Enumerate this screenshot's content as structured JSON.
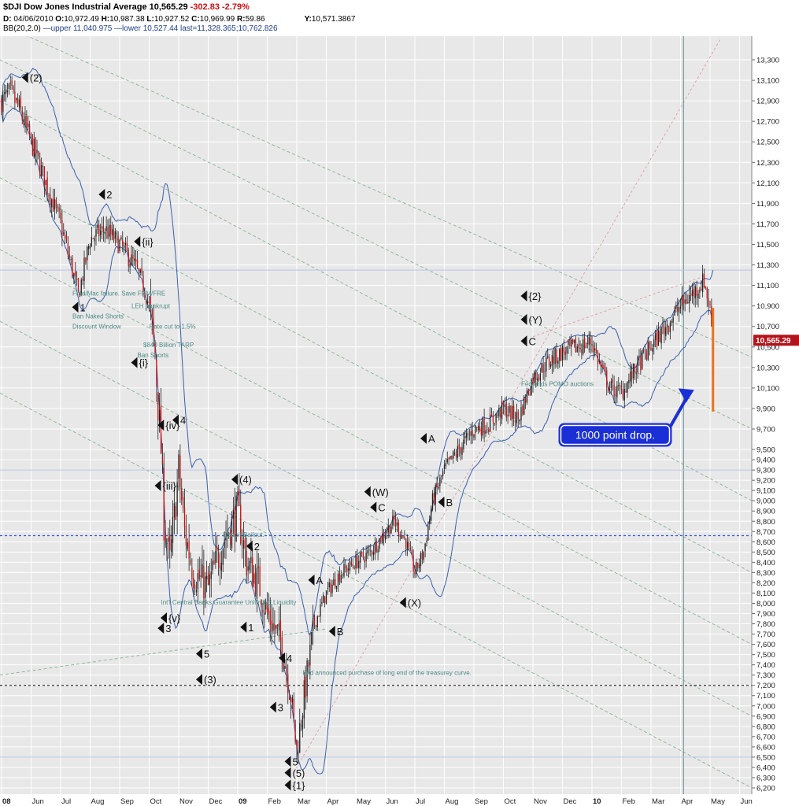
{
  "header": {
    "symbol": "$DJI Dow Jones Industrial Average",
    "last": "10,565.29",
    "change": "-302.83",
    "change_pct": "-2.79%",
    "date_label": "D:",
    "date": "04/06/2010",
    "open_label": "O:",
    "open": "10,972.49",
    "high_label": "H:",
    "high": "10,987.38",
    "low_label": "L:",
    "low": "10,927.52",
    "close_label": "C:",
    "close": "10,969.99",
    "range_label": "R:",
    "range": "59.86",
    "y_label": "Y:",
    "y": "10,571.3867",
    "bb_text": "BB(20,2.0)",
    "bb_upper": "—upper 11,040.975",
    "bb_lower": "—lower 10,527.44",
    "bb_last": "last=11,328.365;10,762.826"
  },
  "chart_data": {
    "type": "candlestick",
    "title": "$DJI Dow Jones Industrial Average",
    "price_axis_position": "right",
    "ylim": [
      6200,
      13300
    ],
    "y_ticks": [
      13300,
      13100,
      12900,
      12700,
      12500,
      12300,
      12100,
      11900,
      11700,
      11500,
      11300,
      11100,
      10900,
      10700,
      10500,
      10300,
      10100,
      9900,
      9700,
      9500,
      9400,
      9300,
      9200,
      9100,
      9000,
      8900,
      8800,
      8700,
      8600,
      8500,
      8400,
      8300,
      8200,
      8100,
      8000,
      7900,
      7800,
      7700,
      7600,
      7500,
      7400,
      7300,
      7200,
      7100,
      7000,
      6900,
      6800,
      6700,
      6600,
      6500,
      6400,
      6300,
      6200
    ],
    "y_tick_labels": [
      "13,300",
      "13,100",
      "12,900",
      "12,700",
      "12,500",
      "12,300",
      "12,100",
      "11,900",
      "11,700",
      "11,500",
      "11,300",
      "11,100",
      "10,900",
      "10,700",
      "10,500",
      "10,300",
      "10,100",
      "9,900",
      "9,700",
      "9,500",
      "9,400",
      "9,300",
      "9,200",
      "9,100",
      "9,000",
      "8,900",
      "8,800",
      "8,700",
      "8,600",
      "8,500",
      "8,400",
      "8,300",
      "8,200",
      "8,100",
      "8,000",
      "7,900",
      "7,800",
      "7,700",
      "7,600",
      "7,500",
      "7,400",
      "7,300",
      "7,200",
      "7,100",
      "7,000",
      "6,900",
      "6,800",
      "6,700",
      "6,600",
      "6,500",
      "6,400",
      "6,300",
      "6,200"
    ],
    "x_ticks": [
      {
        "t": 0,
        "label": "08"
      },
      {
        "t": 1,
        "label": "Jun"
      },
      {
        "t": 2,
        "label": "Jul"
      },
      {
        "t": 3,
        "label": "Aug"
      },
      {
        "t": 4,
        "label": "Sep"
      },
      {
        "t": 5,
        "label": "Oct"
      },
      {
        "t": 6,
        "label": "Nov"
      },
      {
        "t": 7,
        "label": "Dec"
      },
      {
        "t": 8,
        "label": "09"
      },
      {
        "t": 9,
        "label": "Feb"
      },
      {
        "t": 10,
        "label": "Mar"
      },
      {
        "t": 11,
        "label": "Apr"
      },
      {
        "t": 12,
        "label": "May"
      },
      {
        "t": 13,
        "label": "Jun"
      },
      {
        "t": 14,
        "label": "Jul"
      },
      {
        "t": 15,
        "label": "Aug"
      },
      {
        "t": 16,
        "label": "Sep"
      },
      {
        "t": 17,
        "label": "Oct"
      },
      {
        "t": 18,
        "label": "Nov"
      },
      {
        "t": 19,
        "label": "Dec"
      },
      {
        "t": 20,
        "label": "10"
      },
      {
        "t": 21,
        "label": "Feb"
      },
      {
        "t": 22,
        "label": "Mar"
      },
      {
        "t": 23,
        "label": "Apr"
      },
      {
        "t": 24,
        "label": "May"
      },
      {
        "t": 25,
        "label": "Jun"
      }
    ],
    "close_anchors": [
      [
        0.0,
        12900
      ],
      [
        0.3,
        12980
      ],
      [
        0.6,
        12820
      ],
      [
        1.0,
        12500
      ],
      [
        1.5,
        12100
      ],
      [
        2.0,
        11700
      ],
      [
        2.4,
        11250
      ],
      [
        2.6,
        11000
      ],
      [
        3.0,
        11550
      ],
      [
        3.5,
        11650
      ],
      [
        4.0,
        11500
      ],
      [
        4.5,
        11300
      ],
      [
        4.8,
        11100
      ],
      [
        5.0,
        10900
      ],
      [
        5.2,
        10400
      ],
      [
        5.4,
        9500
      ],
      [
        5.5,
        8800
      ],
      [
        5.7,
        8400
      ],
      [
        6.0,
        9300
      ],
      [
        6.2,
        8700
      ],
      [
        6.5,
        8300
      ],
      [
        7.0,
        8150
      ],
      [
        7.5,
        8600
      ],
      [
        8.0,
        8900
      ],
      [
        8.3,
        8400
      ],
      [
        8.7,
        8200
      ],
      [
        9.0,
        7900
      ],
      [
        9.5,
        7600
      ],
      [
        9.8,
        7100
      ],
      [
        10.0,
        6550
      ],
      [
        10.2,
        7000
      ],
      [
        10.6,
        7800
      ],
      [
        11.0,
        8100
      ],
      [
        11.5,
        8300
      ],
      [
        12.0,
        8400
      ],
      [
        12.5,
        8500
      ],
      [
        13.0,
        8700
      ],
      [
        13.3,
        8800
      ],
      [
        13.7,
        8600
      ],
      [
        14.0,
        8300
      ],
      [
        14.3,
        8500
      ],
      [
        14.6,
        9000
      ],
      [
        15.0,
        9300
      ],
      [
        15.5,
        9500
      ],
      [
        16.0,
        9700
      ],
      [
        16.5,
        9750
      ],
      [
        17.0,
        9900
      ],
      [
        17.5,
        9800
      ],
      [
        18.0,
        10200
      ],
      [
        18.5,
        10350
      ],
      [
        19.0,
        10450
      ],
      [
        19.5,
        10500
      ],
      [
        20.0,
        10550
      ],
      [
        20.3,
        10300
      ],
      [
        20.6,
        10100
      ],
      [
        21.0,
        10050
      ],
      [
        21.5,
        10300
      ],
      [
        22.0,
        10500
      ],
      [
        22.5,
        10700
      ],
      [
        23.0,
        10900
      ],
      [
        23.5,
        11050
      ],
      [
        23.8,
        11150
      ],
      [
        23.9,
        11000
      ],
      [
        24.0,
        10868
      ],
      [
        24.1,
        10565
      ]
    ],
    "bollinger": {
      "period": 20,
      "stddev": 2.0,
      "upper": 11040.975,
      "lower": 10527.44,
      "last": [
        11328.365,
        10762.826
      ]
    },
    "last_price_label": "10,565.29",
    "wave_labels": [
      {
        "t": 0.9,
        "y": 13120,
        "text": "(2)"
      },
      {
        "t": 3.5,
        "y": 11980,
        "text": "2"
      },
      {
        "t": 4.7,
        "y": 11520,
        "text": "{ii}"
      },
      {
        "t": 2.6,
        "y": 10880,
        "text": "1"
      },
      {
        "t": 4.6,
        "y": 10340,
        "text": "{i}"
      },
      {
        "t": 5.5,
        "y": 9730,
        "text": "{iv}"
      },
      {
        "t": 6.0,
        "y": 9780,
        "text": "4"
      },
      {
        "t": 5.4,
        "y": 9140,
        "text": "{iii}"
      },
      {
        "t": 8.0,
        "y": 9200,
        "text": "(4)"
      },
      {
        "t": 8.5,
        "y": 8550,
        "text": "2"
      },
      {
        "t": 5.6,
        "y": 7850,
        "text": "{v}"
      },
      {
        "t": 5.5,
        "y": 7750,
        "text": "3"
      },
      {
        "t": 8.3,
        "y": 7760,
        "text": "1"
      },
      {
        "t": 6.8,
        "y": 7500,
        "text": "5"
      },
      {
        "t": 6.8,
        "y": 7250,
        "text": "(3)"
      },
      {
        "t": 9.6,
        "y": 7460,
        "text": "4"
      },
      {
        "t": 9.3,
        "y": 6980,
        "text": "3"
      },
      {
        "t": 9.8,
        "y": 6450,
        "text": "5"
      },
      {
        "t": 9.8,
        "y": 6340,
        "text": "(5)"
      },
      {
        "t": 9.8,
        "y": 6220,
        "text": "{1}"
      },
      {
        "t": 10.6,
        "y": 8220,
        "text": "A"
      },
      {
        "t": 11.3,
        "y": 7720,
        "text": "B"
      },
      {
        "t": 12.5,
        "y": 9080,
        "text": "(W)"
      },
      {
        "t": 12.7,
        "y": 8930,
        "text": "C"
      },
      {
        "t": 13.7,
        "y": 8000,
        "text": "(X)"
      },
      {
        "t": 14.4,
        "y": 9600,
        "text": "A"
      },
      {
        "t": 15.0,
        "y": 8980,
        "text": "B"
      },
      {
        "t": 17.8,
        "y": 10990,
        "text": "{2}"
      },
      {
        "t": 17.8,
        "y": 10760,
        "text": "(Y)"
      },
      {
        "t": 17.8,
        "y": 10550,
        "text": "C"
      }
    ],
    "event_notes": [
      {
        "t": 2.4,
        "y": 11000,
        "text": "Fred/Mac failure. Save FNM/FRE"
      },
      {
        "t": 4.4,
        "y": 10880,
        "text": "LEH bankrupt"
      },
      {
        "t": 2.4,
        "y": 10780,
        "text": "Ban Naked Shorts"
      },
      {
        "t": 2.4,
        "y": 10680,
        "text": "Discount Window"
      },
      {
        "t": 5.0,
        "y": 10680,
        "text": "Rate cut to 1.5%"
      },
      {
        "t": 4.8,
        "y": 10500,
        "text": "$840 Billion TARP"
      },
      {
        "t": 4.6,
        "y": 10400,
        "text": "Ban Shorts"
      },
      {
        "t": 7.5,
        "y": 8650,
        "text": "Detroit Bailout."
      },
      {
        "t": 5.4,
        "y": 7990,
        "text": "Int'l Central Banks Guarantee Unlimited Liquidity"
      },
      {
        "t": 10.2,
        "y": 7300,
        "text": "Fed announced purchase of long end of the treasurey curve."
      },
      {
        "t": 17.6,
        "y": 10120,
        "text": "Fed ends POMO auctions"
      }
    ],
    "annotation": {
      "text": "1000 point drop.",
      "t": 20.2,
      "y": 9650
    },
    "horizontal_lines": [
      {
        "y": 8660,
        "style": "blue-dashed"
      },
      {
        "y": 7200,
        "style": "black-dashed"
      }
    ]
  }
}
